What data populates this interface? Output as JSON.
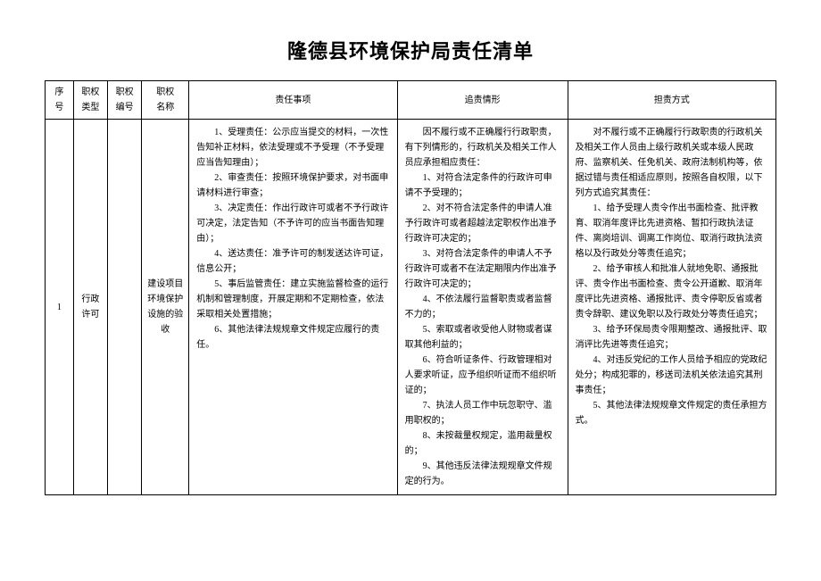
{
  "title": "隆德县环境保护局责任清单",
  "headers": {
    "seq": "序号",
    "type": "职权\n类型",
    "code": "职权\n编号",
    "name": "职权\n名称",
    "duty": "责任事项",
    "circumstance": "追责情形",
    "method": "担责方式"
  },
  "row": {
    "seq": "1",
    "type": "行政许可",
    "code": "",
    "name": "建设项目环境保护设施的验收",
    "duty": "　　1、受理责任：公示应当提交的材料，一次性告知补正材料，依法受理或不予受理（不予受理应当告知理由）；\n　　2、审查责任：按照环境保护要求，对书面申请材料进行审查；\n　　3、决定责任：作出行政许可或者不予行政许可决定，法定告知（不予许可的应当书面告知理由）；\n　　4、送达责任：准予许可的制发送达许可证，信息公开；\n　　5、事后监管责任：建立实施监督检查的运行机制和管理制度，开展定期和不定期检查，依法采取相关处置措施；\n　　6、其他法律法规规章文件规定应履行的责任。",
    "circumstance": "　　因不履行或不正确履行行政职责，有下列情形的，行政机关及相关工作人员应承担相应责任：\n　　1、对符合法定条件的行政许可申请不予受理的；\n　　2、对不符合法定条件的申请人准予行政许可或者超越法定职权作出准予行政许可决定的；\n　　3、对符合法定条件的申请人不予行政许可或者不在法定期限内作出准予行政许可决定的；\n　　4、不依法履行监督职责或者监督不力的；\n　　5、索取或者收受他人财物或者谋取其他利益的；\n　　6、符合听证条件、行政管理相对人要求听证，应予组织听证而不组织听证的；\n　　7、执法人员工作中玩忽职守、滥用职权的；\n　　8、未按裁量权规定，滥用裁量权的；\n　　9、其他违反法律法规规章文件规定的行为。",
    "method": "　　对不履行或不正确履行行政职责的行政机关及相关工作人员由上级行政机关或本级人民政府、监察机关、任免机关、政府法制机构等，依据过错与责任相适应原则，按照各自权限，以下列方式追究其责任：\n　　1、给予受理人责令作出书面检查、批评教育、取消年度评比先进资格、暂扣行政执法证件、离岗培训、调离工作岗位、取消行政执法资格以及行政处分等责任追究；\n　　2、给予审核人和批准人就地免职、通报批评、责令作出书面检查、责令公开道歉、取消年度评比先进资格、通报批评、责令停职反省或者责令辞职、建议免职以及行政处分等责任追究；\n　　3、给予环保局责令限期整改、通报批评、取消评比先进等责任追究；\n　　4、对违反党纪的工作人员给予相应的党政纪处分；构成犯罪的，移送司法机关依法追究其刑事责任；\n　　5、其他法律法规规章文件规定的责任承担方式。"
  }
}
